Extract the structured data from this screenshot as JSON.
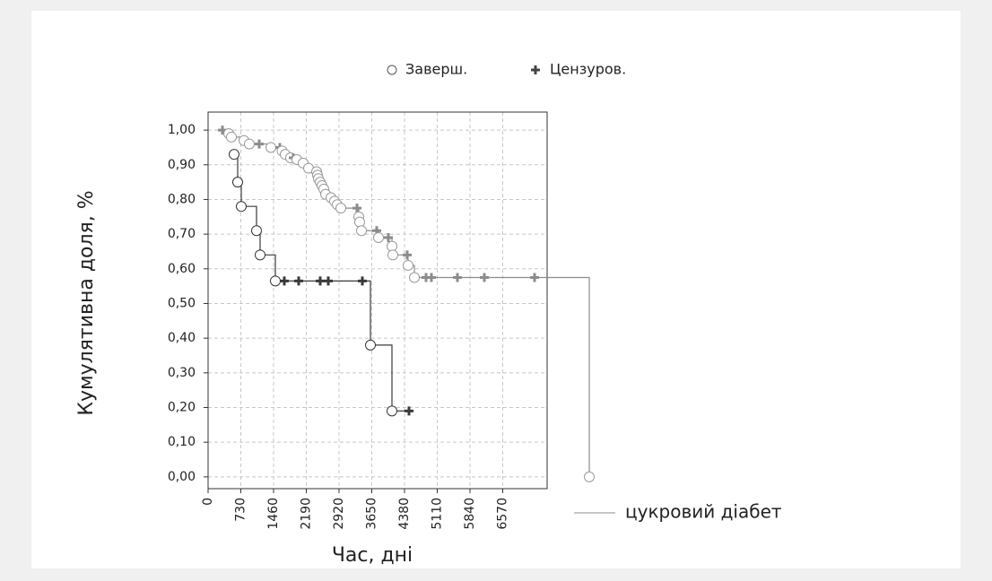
{
  "chart_data": {
    "type": "survival",
    "xlabel": "Час, дні",
    "ylabel": "Кумулятивна доля, %",
    "marker_legend": [
      "Заверш.",
      "Цензуров."
    ],
    "xlim": [
      0,
      7560
    ],
    "ylim": [
      -0.034,
      1.052
    ],
    "xticks": [
      0,
      730,
      1460,
      2190,
      2920,
      3650,
      4380,
      5110,
      5840,
      6570
    ],
    "yticks": [
      {
        "value": 0,
        "label": "0,00"
      },
      {
        "value": 0.1,
        "label": "0,10"
      },
      {
        "value": 0.2,
        "label": "0,20"
      },
      {
        "value": 0.3,
        "label": "0,30"
      },
      {
        "value": 0.4,
        "label": "0,40"
      },
      {
        "value": 0.5,
        "label": "0,50"
      },
      {
        "value": 0.6,
        "label": "0,60"
      },
      {
        "value": 0.7,
        "label": "0,70"
      },
      {
        "value": 0.8,
        "label": "0,80"
      },
      {
        "value": 0.9,
        "label": "0,90"
      },
      {
        "value": 1,
        "label": "1,00"
      }
    ],
    "grid": true,
    "series": [
      {
        "name": "цукровий діабет",
        "color": "#8c8c8c",
        "x": [
          320,
          460,
          520,
          800,
          920,
          1140,
          1400,
          1600,
          1650,
          1720,
          1840,
          1900,
          1980,
          2120,
          2240,
          2420,
          2440,
          2460,
          2500,
          2540,
          2580,
          2620,
          2740,
          2820,
          2880,
          2960,
          3320,
          3360,
          3380,
          3420,
          3760,
          3800,
          4020,
          4100,
          4120,
          4440,
          4460,
          4600,
          4860,
          4980,
          5560,
          6160,
          7280,
          8500
        ],
        "values": [
          1.0,
          0.99,
          0.98,
          0.97,
          0.96,
          0.96,
          0.95,
          0.95,
          0.94,
          0.93,
          0.92,
          0.92,
          0.915,
          0.905,
          0.89,
          0.88,
          0.87,
          0.86,
          0.85,
          0.84,
          0.83,
          0.815,
          0.805,
          0.795,
          0.785,
          0.775,
          0.775,
          0.75,
          0.735,
          0.71,
          0.71,
          0.69,
          0.69,
          0.665,
          0.64,
          0.64,
          0.61,
          0.575,
          0.575,
          0.575,
          0.575,
          0.575,
          0.575,
          0.0
        ],
        "censored": [
          true,
          false,
          false,
          false,
          false,
          true,
          false,
          true,
          false,
          false,
          false,
          true,
          false,
          false,
          false,
          false,
          false,
          false,
          false,
          false,
          false,
          false,
          false,
          false,
          false,
          false,
          true,
          false,
          false,
          false,
          true,
          false,
          true,
          false,
          false,
          true,
          false,
          false,
          true,
          true,
          true,
          true,
          true,
          false
        ]
      },
      {
        "color": "#3a3a3a",
        "x": [
          580,
          660,
          740,
          1080,
          1160,
          1500,
          1700,
          2020,
          2500,
          2680,
          3440,
          3620,
          4100,
          4480
        ],
        "values": [
          0.93,
          0.85,
          0.78,
          0.71,
          0.64,
          0.565,
          0.565,
          0.565,
          0.565,
          0.565,
          0.565,
          0.38,
          0.19,
          0.19
        ],
        "censored": [
          false,
          false,
          false,
          false,
          false,
          false,
          true,
          true,
          true,
          true,
          true,
          false,
          false,
          true
        ]
      }
    ]
  }
}
